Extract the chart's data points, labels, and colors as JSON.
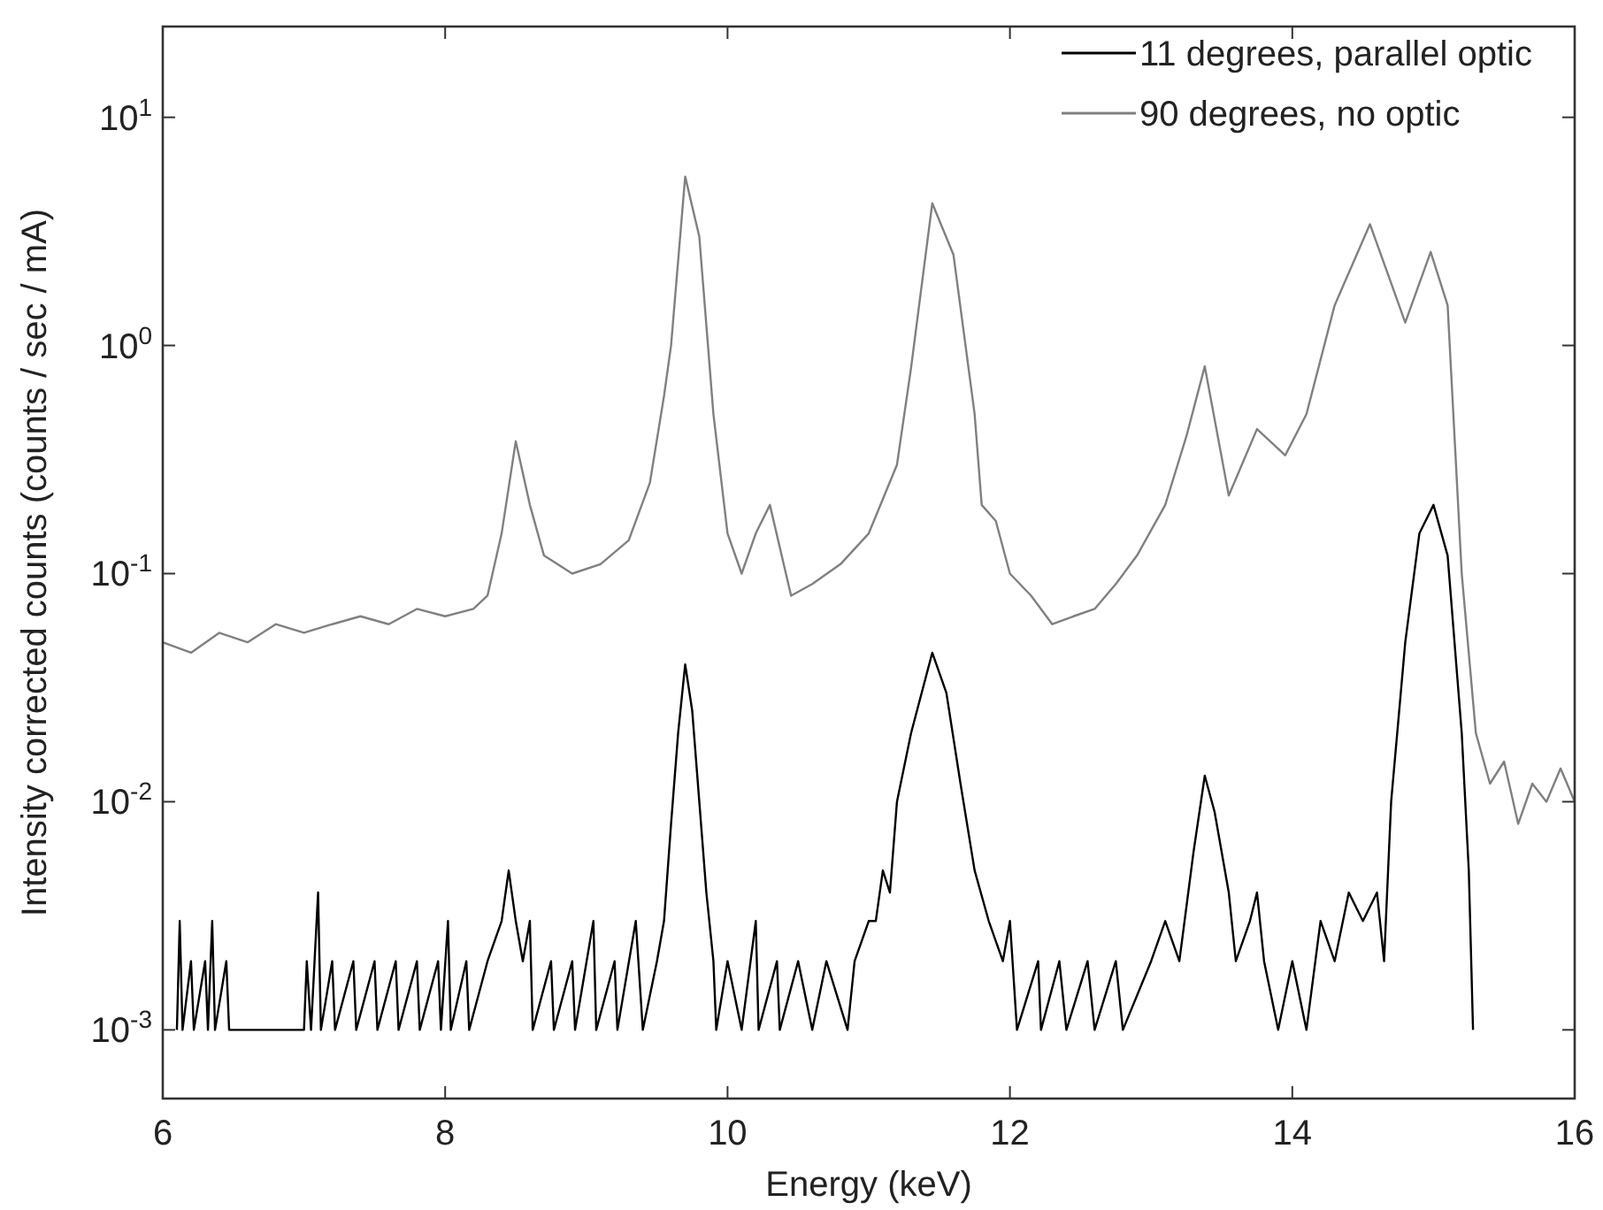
{
  "chart_data": {
    "type": "line",
    "xlabel": "Energy (keV)",
    "ylabel": "Intensity corrected counts (counts / sec / mA)",
    "log": "y",
    "legend": "top right",
    "xlim": [
      6,
      16
    ],
    "xticks": [
      6,
      8,
      10,
      12,
      14,
      16
    ],
    "ylim": [
      0.0005,
      25
    ],
    "yticks": [
      {
        "value": 0.001,
        "label": "10$^{-3}$"
      },
      {
        "value": 0.01,
        "label": "10$^{-2}$"
      },
      {
        "value": 0.1,
        "label": "10$^{-1}$"
      },
      {
        "value": 1,
        "label": "10$^{0}$"
      },
      {
        "value": 10,
        "label": "10$^{1}$"
      }
    ],
    "grid": false,
    "line_style": "solid",
    "series": [
      {
        "name": "11 degrees, parallel optic",
        "color": "#000000",
        "x": [
          6.1,
          6.12,
          6.14,
          6.2,
          6.22,
          6.3,
          6.32,
          6.35,
          6.37,
          6.45,
          6.47,
          7.0,
          7.02,
          7.05,
          7.1,
          7.12,
          7.2,
          7.22,
          7.35,
          7.37,
          7.5,
          7.52,
          7.65,
          7.67,
          7.8,
          7.82,
          7.95,
          7.97,
          8.02,
          8.04,
          8.15,
          8.17,
          8.3,
          8.4,
          8.45,
          8.5,
          8.55,
          8.6,
          8.62,
          8.75,
          8.77,
          8.9,
          8.92,
          9.05,
          9.07,
          9.2,
          9.22,
          9.35,
          9.4,
          9.5,
          9.55,
          9.6,
          9.65,
          9.7,
          9.75,
          9.8,
          9.85,
          9.9,
          9.92,
          10.0,
          10.1,
          10.2,
          10.22,
          10.35,
          10.37,
          10.5,
          10.6,
          10.7,
          10.85,
          10.9,
          11.0,
          11.05,
          11.1,
          11.15,
          11.2,
          11.3,
          11.45,
          11.55,
          11.65,
          11.75,
          11.85,
          11.95,
          12.0,
          12.05,
          12.2,
          12.22,
          12.35,
          12.4,
          12.55,
          12.6,
          12.75,
          12.8,
          13.0,
          13.1,
          13.2,
          13.3,
          13.38,
          13.45,
          13.55,
          13.6,
          13.7,
          13.75,
          13.8,
          13.9,
          14.0,
          14.1,
          14.2,
          14.3,
          14.4,
          14.5,
          14.6,
          14.65,
          14.7,
          14.8,
          14.9,
          15.0,
          15.1,
          15.2,
          15.25,
          15.28
        ],
        "values": [
          0.001,
          0.003,
          0.001,
          0.002,
          0.001,
          0.002,
          0.001,
          0.003,
          0.001,
          0.002,
          0.001,
          0.001,
          0.002,
          0.001,
          0.004,
          0.001,
          0.002,
          0.001,
          0.002,
          0.001,
          0.002,
          0.001,
          0.002,
          0.001,
          0.002,
          0.001,
          0.002,
          0.001,
          0.003,
          0.001,
          0.002,
          0.001,
          0.002,
          0.003,
          0.005,
          0.003,
          0.002,
          0.003,
          0.001,
          0.002,
          0.001,
          0.002,
          0.001,
          0.003,
          0.001,
          0.002,
          0.001,
          0.003,
          0.001,
          0.002,
          0.003,
          0.008,
          0.02,
          0.04,
          0.025,
          0.01,
          0.004,
          0.002,
          0.001,
          0.002,
          0.001,
          0.003,
          0.001,
          0.002,
          0.001,
          0.002,
          0.001,
          0.002,
          0.001,
          0.002,
          0.003,
          0.003,
          0.005,
          0.004,
          0.01,
          0.02,
          0.045,
          0.03,
          0.012,
          0.005,
          0.003,
          0.002,
          0.003,
          0.001,
          0.002,
          0.001,
          0.002,
          0.001,
          0.002,
          0.001,
          0.002,
          0.001,
          0.002,
          0.003,
          0.002,
          0.006,
          0.013,
          0.009,
          0.004,
          0.002,
          0.003,
          0.004,
          0.002,
          0.001,
          0.002,
          0.001,
          0.003,
          0.002,
          0.004,
          0.003,
          0.004,
          0.002,
          0.01,
          0.05,
          0.15,
          0.2,
          0.12,
          0.02,
          0.005,
          0.001
        ]
      },
      {
        "name": "90 degrees, no optic",
        "color": "#808080",
        "x": [
          6.0,
          6.2,
          6.4,
          6.6,
          6.8,
          7.0,
          7.2,
          7.4,
          7.6,
          7.8,
          8.0,
          8.2,
          8.3,
          8.4,
          8.5,
          8.6,
          8.7,
          8.9,
          9.1,
          9.3,
          9.45,
          9.55,
          9.6,
          9.7,
          9.8,
          9.9,
          10.0,
          10.1,
          10.2,
          10.3,
          10.45,
          10.6,
          10.8,
          11.0,
          11.2,
          11.3,
          11.45,
          11.6,
          11.75,
          11.8,
          11.9,
          12.0,
          12.15,
          12.3,
          12.45,
          12.6,
          12.75,
          12.9,
          13.1,
          13.25,
          13.38,
          13.55,
          13.75,
          13.95,
          14.1,
          14.3,
          14.55,
          14.8,
          14.98,
          15.1,
          15.2,
          15.3,
          15.4,
          15.5,
          15.6,
          15.7,
          15.8,
          15.9,
          16.0
        ],
        "values": [
          0.05,
          0.045,
          0.055,
          0.05,
          0.06,
          0.055,
          0.06,
          0.065,
          0.06,
          0.07,
          0.065,
          0.07,
          0.08,
          0.15,
          0.38,
          0.2,
          0.12,
          0.1,
          0.11,
          0.14,
          0.25,
          0.6,
          1.0,
          5.5,
          3.0,
          0.5,
          0.15,
          0.1,
          0.15,
          0.2,
          0.08,
          0.09,
          0.11,
          0.15,
          0.3,
          0.8,
          4.2,
          2.5,
          0.5,
          0.2,
          0.17,
          0.1,
          0.08,
          0.06,
          0.065,
          0.07,
          0.09,
          0.12,
          0.2,
          0.4,
          0.81,
          0.22,
          0.43,
          0.33,
          0.5,
          1.5,
          3.4,
          1.26,
          2.57,
          1.5,
          0.1,
          0.02,
          0.012,
          0.015,
          0.008,
          0.012,
          0.01,
          0.014,
          0.01
        ]
      }
    ]
  }
}
